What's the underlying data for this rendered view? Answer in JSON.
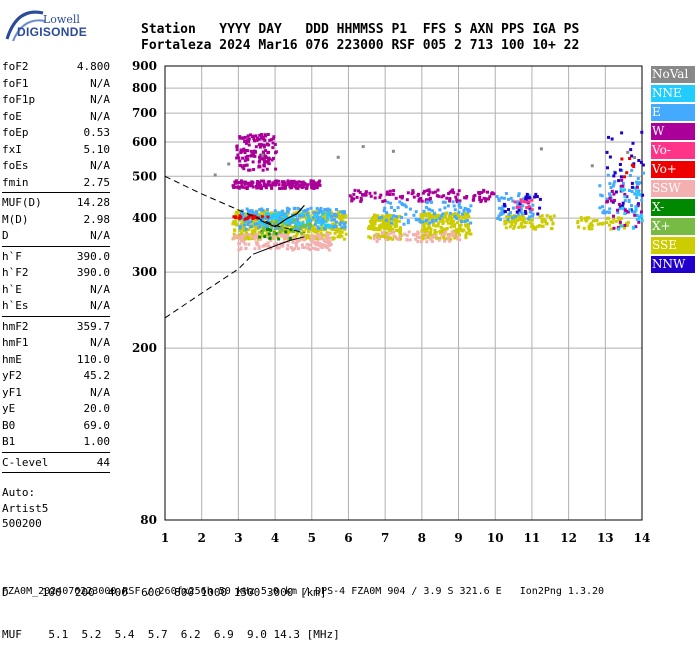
{
  "logo": {
    "line1": "Lowell",
    "line2": "DIGISONDE"
  },
  "header": {
    "line1": "Station   YYYY DAY   DDD HHMMSS P1  FFS S AXN PPS IGA PS",
    "line2": "Fortaleza 2024 Mar16 076 223000 RSF 005 2 713 100 10+ 22"
  },
  "params": {
    "group1": [
      {
        "label": "foF2",
        "value": "4.800"
      },
      {
        "label": "foF1",
        "value": "N/A"
      },
      {
        "label": "foF1p",
        "value": "N/A"
      },
      {
        "label": "foE",
        "value": "N/A"
      },
      {
        "label": "foEp",
        "value": "0.53"
      },
      {
        "label": "fxI",
        "value": "5.10"
      },
      {
        "label": "foEs",
        "value": "N/A"
      },
      {
        "label": "fmin",
        "value": "2.75"
      }
    ],
    "group2": [
      {
        "label": "MUF(D)",
        "value": "14.28"
      },
      {
        "label": "M(D)",
        "value": "2.98"
      },
      {
        "label": "D",
        "value": "N/A"
      }
    ],
    "group3": [
      {
        "label": "h`F",
        "value": "390.0"
      },
      {
        "label": "h`F2",
        "value": "390.0"
      },
      {
        "label": "h`E",
        "value": "N/A"
      },
      {
        "label": "h`Es",
        "value": "N/A"
      }
    ],
    "group4": [
      {
        "label": "hmF2",
        "value": "359.7"
      },
      {
        "label": "hmF1",
        "value": "N/A"
      },
      {
        "label": "hmE",
        "value": "110.0"
      },
      {
        "label": "yF2",
        "value": "45.2"
      },
      {
        "label": "yF1",
        "value": "N/A"
      },
      {
        "label": "yE",
        "value": "20.0"
      },
      {
        "label": "B0",
        "value": "69.0"
      },
      {
        "label": "B1",
        "value": "1.00"
      }
    ],
    "group5": [
      {
        "label": "C-level",
        "value": "44"
      }
    ]
  },
  "auto": {
    "line1": "Auto:",
    "line2": "Artist5",
    "line3": "500200"
  },
  "legend": [
    {
      "label": "NoVal",
      "color": "#888888"
    },
    {
      "label": "NNE",
      "color": "#22ccff"
    },
    {
      "label": "E",
      "color": "#44aaff"
    },
    {
      "label": "W",
      "color": "#aa0099"
    },
    {
      "label": "Vo-",
      "color": "#ff3388"
    },
    {
      "label": "Vo+",
      "color": "#ee0000"
    },
    {
      "label": "SSW",
      "color": "#f4b0b0"
    },
    {
      "label": "X-",
      "color": "#008800"
    },
    {
      "label": "X+",
      "color": "#77bb44"
    },
    {
      "label": "SSE",
      "color": "#cccc00"
    },
    {
      "label": "NNW",
      "color": "#2200cc"
    }
  ],
  "bottom": {
    "line1": "D     100  200  400  600  800 1000 1500 3000 [km]",
    "line2": "MUF    5.1  5.2  5.4  5.7  6.2  6.9  9.0 14.3 [MHz]"
  },
  "footer": "FZA0M_2024076223000.RSF / 260fx256h 50 kHz 5.0 km / DPS-4 FZA0M 904 / 3.9 S 321.6 E   Ion2Png 1.3.20",
  "chart_data": {
    "type": "scatter",
    "xlim": [
      1,
      14
    ],
    "ylim": [
      80,
      900
    ],
    "x_ticks": [
      1,
      2,
      3,
      4,
      5,
      6,
      7,
      8,
      9,
      10,
      11,
      12,
      13,
      14
    ],
    "y_ticks": [
      80,
      200,
      300,
      400,
      500,
      600,
      700,
      800,
      900
    ],
    "y_scale": "log",
    "grid": true,
    "clusters": [
      {
        "color": "#aa0099",
        "fx": [
          2.9,
          4.0
        ],
        "fy": [
          520,
          630
        ],
        "n": 140
      },
      {
        "color": "#aa0099",
        "fx": [
          2.8,
          5.2
        ],
        "fy": [
          472,
          492
        ],
        "n": 160
      },
      {
        "color": "#aa0099",
        "fx": [
          6.0,
          10.0
        ],
        "fy": [
          440,
          470
        ],
        "n": 110
      },
      {
        "color": "#cccc00",
        "fx": [
          2.8,
          5.9
        ],
        "fy": [
          360,
          420
        ],
        "n": 520
      },
      {
        "color": "#44aaff",
        "fx": [
          3.0,
          5.9
        ],
        "fy": [
          380,
          425
        ],
        "n": 200
      },
      {
        "color": "#f4b0b0",
        "fx": [
          2.8,
          5.5
        ],
        "fy": [
          340,
          370
        ],
        "n": 160
      },
      {
        "color": "#22ccff",
        "fx": [
          3.5,
          5.5
        ],
        "fy": [
          385,
          415
        ],
        "n": 70
      },
      {
        "color": "#cccc00",
        "fx": [
          6.5,
          7.4
        ],
        "fy": [
          360,
          410
        ],
        "n": 130
      },
      {
        "color": "#cccc00",
        "fx": [
          7.9,
          9.3
        ],
        "fy": [
          360,
          415
        ],
        "n": 200
      },
      {
        "color": "#44aaff",
        "fx": [
          6.8,
          9.3
        ],
        "fy": [
          390,
          440
        ],
        "n": 80
      },
      {
        "color": "#f4b0b0",
        "fx": [
          6.6,
          9.0
        ],
        "fy": [
          355,
          375
        ],
        "n": 60
      },
      {
        "color": "#cccc00",
        "fx": [
          10.2,
          11.6
        ],
        "fy": [
          380,
          410
        ],
        "n": 80
      },
      {
        "color": "#44aaff",
        "fx": [
          10.0,
          11.0
        ],
        "fy": [
          400,
          460
        ],
        "n": 50
      },
      {
        "color": "#2200cc",
        "fx": [
          10.2,
          11.2
        ],
        "fy": [
          410,
          460
        ],
        "n": 25
      },
      {
        "color": "#ff3388",
        "fx": [
          10.5,
          11.0
        ],
        "fy": [
          420,
          450
        ],
        "n": 12
      },
      {
        "color": "#cccc00",
        "fx": [
          12.2,
          13.6
        ],
        "fy": [
          380,
          405
        ],
        "n": 50
      },
      {
        "color": "#44aaff",
        "fx": [
          12.8,
          14.0
        ],
        "fy": [
          400,
          520
        ],
        "n": 60
      },
      {
        "color": "#2200cc",
        "fx": [
          13.0,
          14.0
        ],
        "fy": [
          420,
          640
        ],
        "n": 30
      },
      {
        "color": "#aa0099",
        "fx": [
          13.0,
          14.0
        ],
        "fy": [
          380,
          500
        ],
        "n": 30
      },
      {
        "color": "#22ccff",
        "fx": [
          13.3,
          14.0
        ],
        "fy": [
          380,
          480
        ],
        "n": 20
      },
      {
        "color": "#ee0000",
        "fx": [
          2.8,
          3.8
        ],
        "fy": [
          400,
          410
        ],
        "n": 18
      },
      {
        "color": "#ee0000",
        "fx": [
          13.4,
          13.8
        ],
        "fy": [
          480,
          560
        ],
        "n": 6
      },
      {
        "color": "#008800",
        "fx": [
          3.5,
          4.5
        ],
        "fy": [
          360,
          380
        ],
        "n": 15
      },
      {
        "color": "#77bb44",
        "fx": [
          3.5,
          5.0
        ],
        "fy": [
          370,
          400
        ],
        "n": 25
      },
      {
        "color": "#888888",
        "fx": [
          2.0,
          14.0
        ],
        "fy": [
          500,
          600
        ],
        "n": 10
      }
    ],
    "profile": {
      "dashed": [
        [
          1.0,
          500
        ],
        [
          2.0,
          455
        ],
        [
          3.0,
          418
        ],
        [
          4.0,
          385
        ],
        [
          4.5,
          375
        ],
        [
          4.8,
          370
        ]
      ],
      "solid": [
        [
          3.4,
          330
        ],
        [
          4.0,
          345
        ],
        [
          4.4,
          355
        ],
        [
          4.8,
          362
        ]
      ],
      "dashed_lower": [
        [
          1.0,
          235
        ],
        [
          2.0,
          268
        ],
        [
          3.0,
          305
        ],
        [
          3.4,
          330
        ]
      ],
      "trace": [
        [
          3.6,
          395
        ],
        [
          4.0,
          382
        ],
        [
          4.3,
          398
        ],
        [
          4.6,
          410
        ],
        [
          4.8,
          428
        ]
      ]
    }
  }
}
